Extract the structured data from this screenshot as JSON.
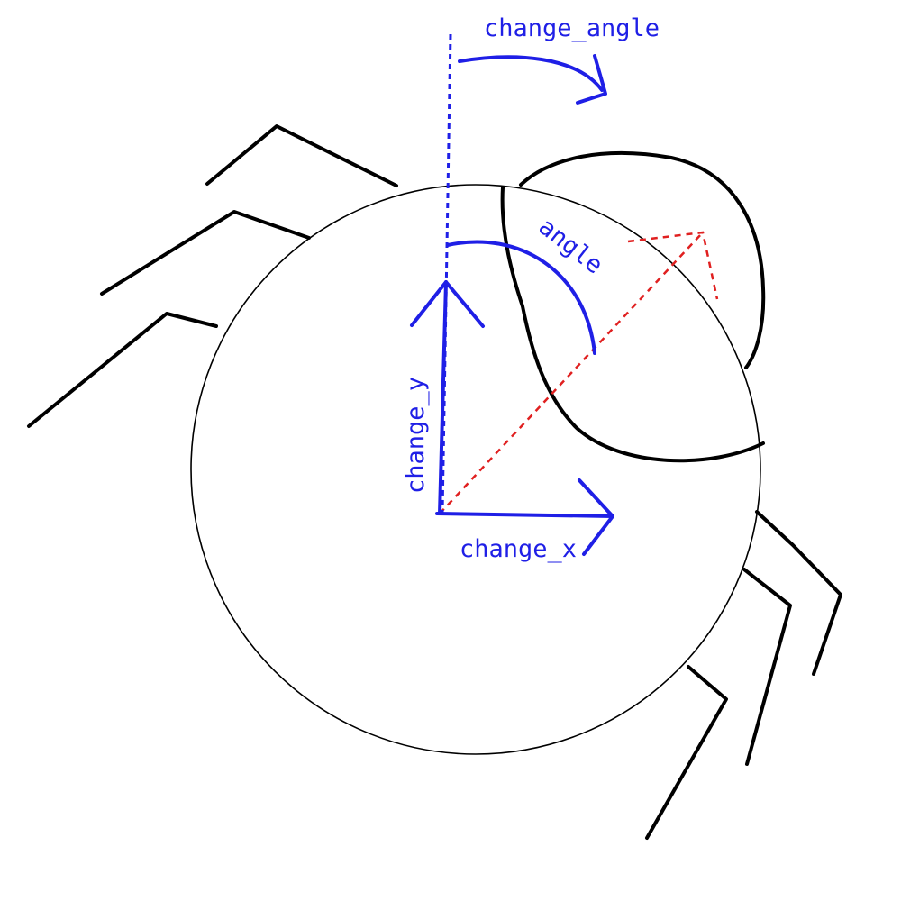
{
  "labels": {
    "change_angle": "change_angle",
    "angle": "angle",
    "change_y": "change_y",
    "change_x": "change_x"
  },
  "colors": {
    "outline": "#000000",
    "annotation": "#1f1fe6",
    "direction": "#e02020",
    "background": "#ffffff"
  }
}
